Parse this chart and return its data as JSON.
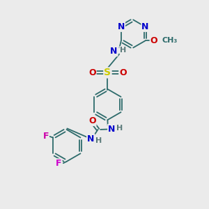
{
  "bg_color": "#ebebeb",
  "atom_colors": {
    "C": "#2d6b6b",
    "N": "#0000cc",
    "O": "#cc0000",
    "S": "#cccc00",
    "F_ortho": "#cc00aa",
    "F_para": "#cc00cc",
    "H": "#5a7a7a"
  },
  "bond_color": "#2d6b6b",
  "font_size": 9,
  "figsize": [
    3.0,
    3.0
  ],
  "dpi": 100,
  "xlim": [
    0,
    10
  ],
  "ylim": [
    0,
    10
  ]
}
